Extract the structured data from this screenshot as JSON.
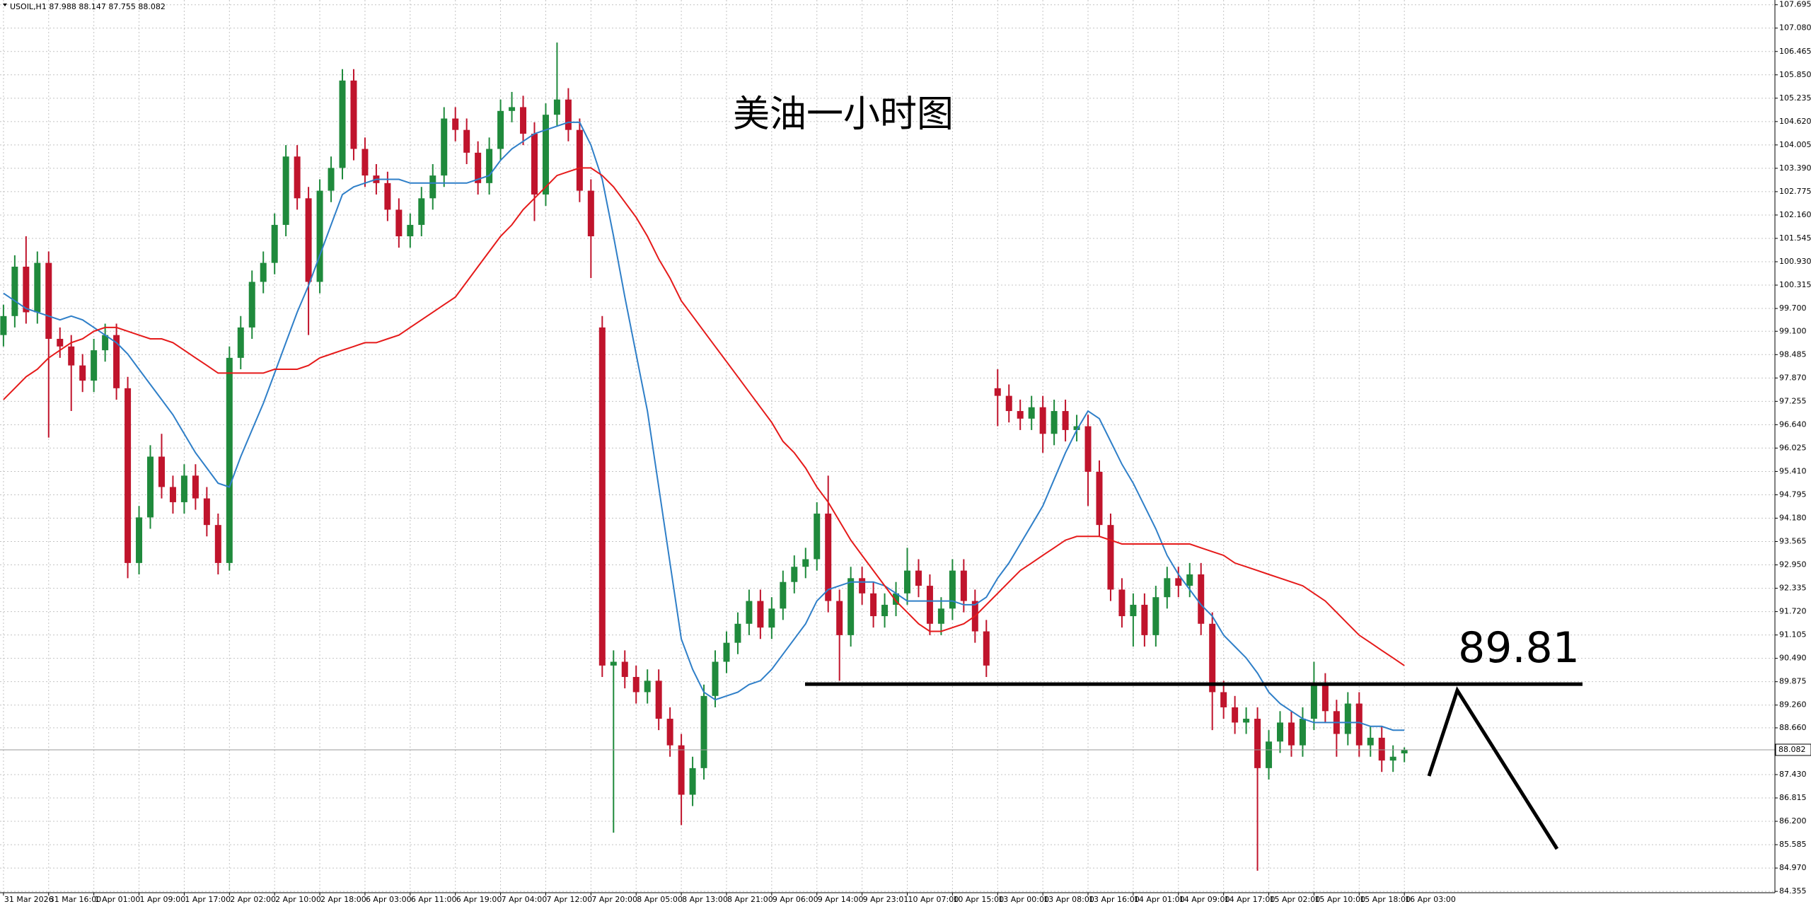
{
  "chart_data": {
    "type": "candlestick",
    "title": "美油一小时图",
    "symbol": "USOIL,H1",
    "categories": [
      "31 Mar 2026",
      null,
      null,
      null,
      "31 Mar 16:00",
      null,
      null,
      null,
      "1 Apr 01:00",
      null,
      null,
      null,
      "1 Apr 09:00",
      null,
      null,
      null,
      "1 Apr 17:00",
      null,
      null,
      null,
      "2 Apr 02:00",
      null,
      null,
      null,
      "2 Apr 10:00",
      null,
      null,
      null,
      "2 Apr 18:00",
      null,
      null,
      null,
      "6 Apr 03:00",
      null,
      null,
      null,
      "6 Apr 11:00",
      null,
      null,
      null,
      "6 Apr 19:00",
      null,
      null,
      null,
      "7 Apr 04:00",
      null,
      null,
      null,
      "7 Apr 12:00",
      null,
      null,
      null,
      "7 Apr 20:00",
      null,
      null,
      null,
      "8 Apr 05:00",
      null,
      null,
      null,
      "8 Apr 13:00",
      null,
      null,
      null,
      "8 Apr 21:00",
      null,
      null,
      null,
      "9 Apr 06:00",
      null,
      null,
      null,
      "9 Apr 14:00",
      null,
      null,
      null,
      "9 Apr 23:01",
      null,
      null,
      null,
      "10 Apr 07:00",
      null,
      null,
      null,
      "10 Apr 15:00",
      null,
      null,
      null,
      "13 Apr 00:00",
      null,
      null,
      null,
      "13 Apr 08:00",
      null,
      null,
      null,
      "13 Apr 16:00",
      null,
      null,
      null,
      "14 Apr 01:00",
      null,
      null,
      null,
      "14 Apr 09:00",
      null,
      null,
      null,
      "14 Apr 17:00",
      null,
      null,
      null,
      "15 Apr 02:00",
      null,
      null,
      null,
      "15 Apr 10:00",
      null,
      null,
      null,
      "15 Apr 18:00",
      null,
      null,
      null,
      "16 Apr 03:00"
    ],
    "open": [
      99.0,
      99.5,
      100.8,
      99.6,
      100.9,
      98.9,
      98.7,
      98.2,
      97.8,
      98.6,
      99.0,
      97.6,
      93.0,
      94.2,
      95.8,
      95.0,
      94.6,
      95.3,
      94.7,
      94.0,
      93.0,
      98.4,
      99.2,
      100.4,
      100.9,
      101.9,
      103.7,
      102.6,
      100.4,
      102.8,
      103.4,
      105.7,
      103.9,
      103.2,
      103.0,
      102.3,
      101.6,
      101.9,
      102.6,
      103.2,
      104.7,
      104.4,
      103.8,
      103.0,
      103.9,
      104.9,
      105.0,
      104.3,
      102.7,
      104.8,
      105.2,
      104.4,
      102.8,
      99.2,
      90.3,
      90.4,
      90.0,
      89.6,
      89.9,
      88.9,
      88.2,
      86.9,
      87.6,
      89.5,
      90.4,
      90.9,
      91.4,
      92.0,
      91.3,
      91.8,
      92.5,
      92.9,
      93.1,
      94.3,
      92.0,
      91.1,
      92.6,
      92.2,
      91.6,
      91.9,
      92.2,
      92.8,
      92.4,
      91.4,
      91.8,
      92.8,
      92.0,
      91.2,
      97.6,
      97.4,
      97.0,
      96.8,
      97.1,
      96.4,
      97.0,
      96.5,
      96.6,
      95.4,
      94.0,
      92.3,
      91.6,
      91.9,
      91.1,
      92.1,
      92.6,
      92.4,
      92.7,
      91.4,
      89.6,
      89.2,
      88.8,
      88.9,
      87.6,
      88.3,
      88.8,
      88.2,
      88.9,
      89.8,
      89.1,
      88.5,
      89.3,
      88.2,
      88.4,
      87.8,
      87.988
    ],
    "high": [
      99.8,
      101.1,
      101.6,
      101.2,
      101.2,
      99.2,
      99.0,
      98.5,
      98.9,
      99.3,
      99.3,
      97.9,
      94.5,
      96.1,
      96.4,
      95.3,
      95.6,
      95.6,
      95.0,
      94.3,
      98.7,
      99.5,
      100.7,
      101.2,
      102.2,
      104.0,
      104.0,
      102.9,
      103.1,
      103.7,
      106.0,
      106.0,
      104.2,
      103.5,
      103.3,
      102.6,
      102.2,
      102.9,
      103.5,
      105.0,
      105.0,
      104.7,
      104.1,
      104.2,
      105.2,
      105.4,
      105.3,
      104.6,
      105.1,
      106.7,
      105.5,
      104.7,
      103.1,
      99.5,
      90.7,
      90.7,
      90.3,
      90.2,
      90.2,
      89.2,
      88.5,
      87.9,
      89.8,
      90.7,
      91.2,
      91.7,
      92.3,
      92.3,
      92.1,
      92.8,
      93.2,
      93.4,
      94.6,
      95.3,
      92.3,
      92.9,
      92.9,
      92.5,
      92.2,
      92.5,
      93.4,
      93.1,
      92.7,
      92.1,
      93.1,
      93.1,
      92.3,
      91.5,
      98.1,
      97.7,
      97.3,
      97.4,
      97.4,
      97.3,
      97.3,
      96.9,
      96.9,
      95.7,
      94.3,
      92.6,
      92.2,
      92.2,
      92.4,
      92.9,
      92.9,
      93.0,
      93.0,
      91.7,
      89.9,
      89.5,
      89.2,
      89.2,
      88.6,
      89.1,
      89.1,
      89.2,
      90.4,
      90.1,
      89.4,
      89.6,
      89.6,
      88.7,
      88.7,
      88.2,
      88.147
    ],
    "low": [
      98.7,
      99.2,
      99.3,
      99.3,
      96.3,
      98.4,
      97.0,
      97.5,
      97.5,
      98.3,
      97.3,
      92.6,
      92.7,
      93.9,
      94.7,
      94.3,
      94.3,
      94.4,
      93.7,
      92.7,
      92.8,
      98.1,
      98.9,
      100.1,
      100.6,
      101.6,
      102.3,
      99.0,
      100.1,
      102.5,
      103.1,
      103.6,
      102.9,
      102.7,
      102.0,
      101.3,
      101.3,
      101.6,
      102.3,
      102.9,
      104.1,
      103.5,
      102.7,
      102.7,
      103.6,
      104.6,
      104.0,
      102.0,
      102.4,
      104.5,
      104.1,
      102.5,
      100.5,
      90.0,
      85.9,
      89.7,
      89.3,
      89.3,
      88.6,
      87.9,
      86.1,
      86.6,
      87.3,
      89.2,
      90.1,
      90.6,
      91.1,
      91.0,
      91.0,
      91.5,
      92.2,
      92.6,
      92.8,
      91.7,
      89.9,
      90.8,
      91.9,
      91.3,
      91.3,
      91.6,
      91.9,
      92.1,
      91.1,
      91.1,
      91.5,
      91.7,
      90.9,
      90.0,
      96.6,
      96.7,
      96.5,
      96.5,
      95.9,
      96.1,
      96.2,
      96.2,
      94.5,
      93.7,
      92.0,
      91.3,
      90.8,
      90.8,
      90.8,
      91.8,
      92.1,
      92.1,
      91.1,
      88.6,
      88.9,
      88.5,
      88.5,
      84.9,
      87.3,
      88.0,
      87.9,
      87.9,
      88.6,
      88.8,
      87.9,
      88.2,
      87.9,
      87.9,
      87.5,
      87.5,
      87.755
    ],
    "close": [
      99.5,
      100.8,
      99.6,
      100.9,
      98.9,
      98.7,
      98.2,
      97.8,
      98.6,
      99.0,
      97.6,
      93.0,
      94.2,
      95.8,
      95.0,
      94.6,
      95.3,
      94.7,
      94.0,
      93.0,
      98.4,
      99.2,
      100.4,
      100.9,
      101.9,
      103.7,
      102.6,
      100.4,
      102.8,
      103.4,
      105.7,
      103.9,
      103.2,
      103.0,
      102.3,
      101.6,
      101.9,
      102.6,
      103.2,
      104.7,
      104.4,
      103.8,
      103.0,
      103.9,
      104.9,
      105.0,
      104.3,
      102.7,
      104.8,
      105.2,
      104.4,
      102.8,
      101.6,
      90.3,
      90.4,
      90.0,
      89.6,
      89.9,
      88.9,
      88.2,
      86.9,
      87.6,
      89.5,
      90.4,
      90.9,
      91.4,
      92.0,
      91.3,
      91.8,
      92.5,
      92.9,
      93.1,
      94.3,
      92.0,
      91.1,
      92.6,
      92.2,
      91.6,
      91.9,
      92.2,
      92.8,
      92.4,
      91.4,
      91.8,
      92.8,
      92.0,
      91.2,
      90.3,
      97.4,
      97.0,
      96.8,
      97.1,
      96.4,
      97.0,
      96.5,
      96.6,
      95.4,
      94.0,
      92.3,
      91.6,
      91.9,
      91.1,
      92.1,
      92.6,
      92.4,
      92.7,
      91.4,
      89.6,
      89.2,
      88.8,
      88.9,
      87.6,
      88.3,
      88.8,
      88.2,
      88.9,
      89.8,
      89.1,
      88.5,
      89.3,
      88.2,
      88.4,
      87.8,
      87.9,
      88.082
    ],
    "moving_averages": [
      {
        "color": "#2f7fc8",
        "values": [
          100.1,
          99.9,
          99.7,
          99.6,
          99.5,
          99.4,
          99.5,
          99.4,
          99.2,
          99.0,
          98.8,
          98.5,
          98.1,
          97.7,
          97.3,
          96.9,
          96.4,
          95.9,
          95.5,
          95.1,
          95.0,
          95.8,
          96.5,
          97.2,
          98.0,
          98.8,
          99.6,
          100.3,
          101.1,
          101.9,
          102.7,
          102.9,
          103.0,
          103.1,
          103.1,
          103.1,
          103.0,
          103.0,
          103.0,
          103.0,
          103.0,
          103.0,
          103.1,
          103.2,
          103.6,
          103.9,
          104.1,
          104.3,
          104.4,
          104.5,
          104.6,
          104.6,
          104.0,
          103.1,
          101.6,
          100.0,
          98.5,
          97.0,
          95.0,
          93.0,
          91.0,
          90.2,
          89.6,
          89.4,
          89.5,
          89.6,
          89.8,
          89.9,
          90.2,
          90.6,
          91.0,
          91.4,
          92.0,
          92.3,
          92.4,
          92.5,
          92.5,
          92.5,
          92.4,
          92.2,
          92.0,
          92.0,
          92.0,
          92.0,
          92.0,
          91.9,
          91.9,
          92.1,
          92.6,
          93.0,
          93.5,
          94.0,
          94.5,
          95.2,
          95.9,
          96.5,
          97.0,
          96.8,
          96.2,
          95.6,
          95.1,
          94.5,
          93.9,
          93.2,
          92.7,
          92.3,
          91.9,
          91.6,
          91.1,
          90.8,
          90.5,
          90.1,
          89.6,
          89.3,
          89.1,
          88.9,
          88.8,
          88.8,
          88.8,
          88.8,
          88.8,
          88.7,
          88.7,
          88.6,
          88.6
        ]
      },
      {
        "color": "#e51a1a",
        "values": [
          97.3,
          97.6,
          97.9,
          98.1,
          98.4,
          98.6,
          98.8,
          98.9,
          99.1,
          99.2,
          99.2,
          99.1,
          99.0,
          98.9,
          98.9,
          98.8,
          98.6,
          98.4,
          98.2,
          98.0,
          98.0,
          98.0,
          98.0,
          98.0,
          98.1,
          98.1,
          98.1,
          98.2,
          98.4,
          98.5,
          98.6,
          98.7,
          98.8,
          98.8,
          98.9,
          99.0,
          99.2,
          99.4,
          99.6,
          99.8,
          100.0,
          100.4,
          100.8,
          101.2,
          101.6,
          101.9,
          102.3,
          102.6,
          102.9,
          103.2,
          103.3,
          103.4,
          103.4,
          103.2,
          102.9,
          102.5,
          102.1,
          101.6,
          101.0,
          100.5,
          99.9,
          99.5,
          99.1,
          98.7,
          98.3,
          97.9,
          97.5,
          97.1,
          96.7,
          96.2,
          95.9,
          95.5,
          95.0,
          94.6,
          94.1,
          93.6,
          93.2,
          92.8,
          92.4,
          92.0,
          91.7,
          91.4,
          91.2,
          91.2,
          91.3,
          91.4,
          91.6,
          91.9,
          92.2,
          92.5,
          92.8,
          93.0,
          93.2,
          93.4,
          93.6,
          93.7,
          93.7,
          93.7,
          93.6,
          93.5,
          93.5,
          93.5,
          93.5,
          93.5,
          93.5,
          93.5,
          93.4,
          93.3,
          93.2,
          93.0,
          92.9,
          92.8,
          92.7,
          92.6,
          92.5,
          92.4,
          92.2,
          92.0,
          91.7,
          91.4,
          91.1,
          90.9,
          90.7,
          90.5,
          90.3
        ]
      }
    ],
    "ylim": [
      84.32,
      107.82
    ],
    "yticks": [
      107.695,
      {
        "value": 107.08,
        "label": "107.080"
      },
      106.465,
      {
        "value": 105.85,
        "label": "105.850"
      },
      105.235,
      {
        "value": 104.62,
        "label": "104.620"
      },
      104.005,
      {
        "value": 103.39,
        "label": "103.390"
      },
      102.775,
      {
        "value": 102.16,
        "label": "102.160"
      },
      101.545,
      {
        "value": 100.93,
        "label": "100.930"
      },
      100.315,
      {
        "value": 99.7,
        "label": "99.700"
      },
      {
        "value": 99.1,
        "label": "99.100"
      },
      98.485,
      {
        "value": 97.87,
        "label": "97.870"
      },
      97.255,
      {
        "value": 96.64,
        "label": "96.640"
      },
      96.025,
      {
        "value": 95.41,
        "label": "95.410"
      },
      94.795,
      {
        "value": 94.18,
        "label": "94.180"
      },
      93.565,
      {
        "value": 92.95,
        "label": "92.950"
      },
      92.335,
      {
        "value": 91.72,
        "label": "91.720"
      },
      91.105,
      {
        "value": 90.49,
        "label": "90.490"
      },
      89.875,
      {
        "value": 89.26,
        "label": "89.260"
      },
      {
        "value": 88.66,
        "label": "88.660"
      },
      {
        "value": 87.43,
        "label": "87.430"
      },
      86.815,
      {
        "value": 86.2,
        "label": "86.200"
      },
      85.585,
      {
        "value": 84.97,
        "label": "84.970"
      },
      84.355
    ],
    "level": 89.81,
    "grid": true,
    "up_color": "#1f8a3c",
    "down_color": "#c0142c"
  }
}
